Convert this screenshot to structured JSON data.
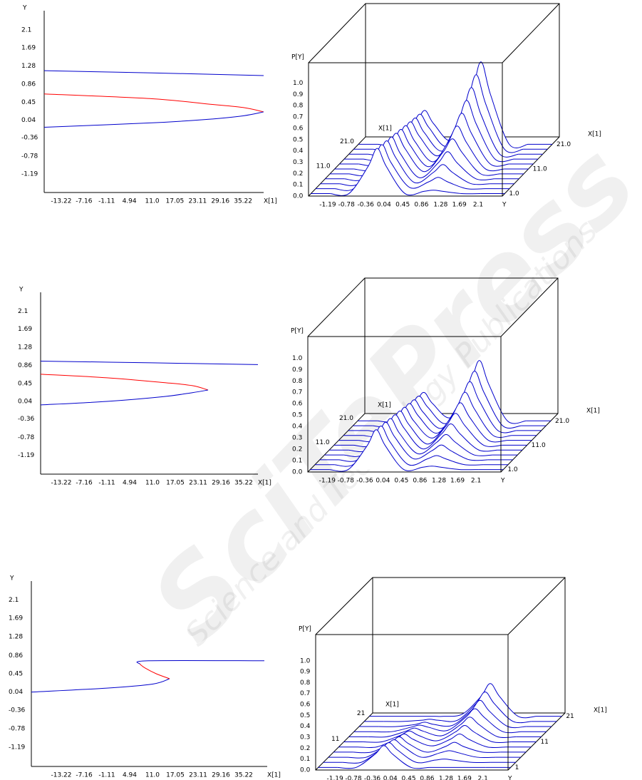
{
  "watermark": [
    "SciTePress",
    "Science and Technology Publications"
  ],
  "chart_data": [
    {
      "type": "line",
      "xlabel": "X[1]",
      "ylabel": "Y",
      "xlim": [
        -17.76,
        40.7
      ],
      "ylim": [
        -1.61,
        2.54
      ],
      "xticks": [
        -13.22,
        -7.16,
        -1.11,
        4.94,
        {
          "value": 11,
          "label": "11.0"
        },
        17.05,
        23.11,
        29.16,
        35.22
      ],
      "yticks": [
        2.1,
        1.69,
        1.28,
        0.86,
        0.45,
        0.04,
        -0.36,
        -0.78,
        -1.19
      ],
      "series": [
        {
          "color": "#0000cc",
          "x": [
            -17.76,
            11,
            40.7
          ],
          "values": [
            1.17,
            1.12,
            1.06
          ]
        },
        {
          "color": "#ff0000",
          "x": [
            -17.76,
            11,
            25.76,
            35.22,
            40.7
          ],
          "values": [
            0.64,
            0.53,
            0.41,
            0.33,
            0.23
          ]
        },
        {
          "color": "#0000cc",
          "x": [
            -17.76,
            11,
            25.76,
            35.22,
            40.7
          ],
          "values": [
            -0.12,
            -0.02,
            0.06,
            0.14,
            0.23
          ]
        }
      ]
    },
    {
      "type": "waterfall",
      "zlabel": "P[Y]",
      "xlabel": "Y",
      "depth_label": "X[1]",
      "color": "#0000cc",
      "xlim": [
        -1.61,
        2.63
      ],
      "zlim": [
        0,
        1.18
      ],
      "dlim": [
        0,
        24
      ],
      "xticks": [
        -1.19,
        -0.78,
        -0.36,
        0.04,
        0.45,
        0.86,
        1.28,
        1.69,
        2.1
      ],
      "zticks": [
        {
          "value": 0,
          "label": "0.0"
        },
        0.1,
        0.2,
        0.3,
        0.4,
        0.5,
        0.6,
        0.7,
        0.8,
        0.9,
        {
          "value": 1,
          "label": "1.0"
        }
      ],
      "depth_ticks": [
        {
          "value": 1,
          "label": "1.0"
        },
        {
          "value": 11,
          "label": "11.0"
        },
        {
          "value": 21,
          "label": "21.0"
        }
      ],
      "y_grid": [
        -1.19,
        -0.78,
        -0.36,
        -0.16,
        0.04,
        0.45,
        0.86,
        1.07,
        1.28,
        1.69,
        2.1
      ],
      "depth": [
        1,
        3,
        5,
        7,
        9,
        11,
        13,
        15,
        17,
        19,
        21
      ],
      "z": [
        [
          0,
          0,
          0.24,
          0.4,
          0.24,
          0,
          0.02,
          0.03,
          0.02,
          0,
          0
        ],
        [
          0,
          0,
          0.23,
          0.39,
          0.23,
          0.01,
          0.06,
          0.1,
          0.06,
          0,
          0
        ],
        [
          0,
          0,
          0.23,
          0.38,
          0.23,
          0.01,
          0.1,
          0.17,
          0.1,
          0,
          0
        ],
        [
          0,
          0,
          0.22,
          0.37,
          0.22,
          0.01,
          0.14,
          0.24,
          0.14,
          0,
          0
        ],
        [
          0,
          0,
          0.22,
          0.36,
          0.22,
          0.02,
          0.19,
          0.31,
          0.19,
          0,
          0
        ],
        [
          0,
          0,
          0.21,
          0.35,
          0.21,
          0.02,
          0.23,
          0.38,
          0.23,
          0,
          0
        ],
        [
          0,
          0,
          0.2,
          0.34,
          0.2,
          0.02,
          0.27,
          0.45,
          0.27,
          0,
          0
        ],
        [
          0,
          0,
          0.2,
          0.33,
          0.2,
          0.03,
          0.31,
          0.52,
          0.31,
          0,
          0
        ],
        [
          0,
          0,
          0.19,
          0.32,
          0.19,
          0.03,
          0.35,
          0.59,
          0.35,
          0,
          0
        ],
        [
          0,
          0,
          0.19,
          0.31,
          0.19,
          0.03,
          0.4,
          0.66,
          0.4,
          0,
          0
        ],
        [
          0,
          0,
          0.18,
          0.3,
          0.18,
          0.04,
          0.44,
          0.73,
          0.44,
          0,
          0
        ]
      ]
    },
    {
      "type": "line",
      "xlabel": "X[1]",
      "ylabel": "Y",
      "xlim": [
        -18.71,
        39.0
      ],
      "ylim": [
        -1.62,
        2.53
      ],
      "xticks": [
        -13.22,
        -7.16,
        -1.11,
        4.94,
        {
          "value": 11,
          "label": "11.0"
        },
        17.05,
        23.11,
        29.16,
        35.22
      ],
      "yticks": [
        2.1,
        1.69,
        1.28,
        0.86,
        0.45,
        0.04,
        -0.36,
        -0.78,
        -1.19
      ],
      "series": [
        {
          "color": "#0000cc",
          "x": [
            -18.71,
            11,
            39.0
          ],
          "values": [
            0.96,
            0.92,
            0.88
          ]
        },
        {
          "color": "#ff0000",
          "x": [
            -18.71,
            -1.11,
            14.03,
            21.6,
            25.76
          ],
          "values": [
            0.66,
            0.58,
            0.47,
            0.4,
            0.3
          ]
        },
        {
          "color": "#0000cc",
          "x": [
            -18.71,
            -1.11,
            14.03,
            21.6,
            25.76
          ],
          "values": [
            -0.04,
            0.04,
            0.15,
            0.24,
            0.3
          ]
        }
      ]
    },
    {
      "type": "waterfall",
      "zlabel": "P[Y]",
      "xlabel": "Y",
      "depth_label": "X[1]",
      "color": "#0000cc",
      "xlim": [
        -1.62,
        2.65
      ],
      "zlim": [
        0,
        1.19
      ],
      "dlim": [
        0,
        24
      ],
      "xticks": [
        -1.19,
        -0.78,
        -0.36,
        0.04,
        0.45,
        0.86,
        1.28,
        1.69,
        2.1
      ],
      "zticks": [
        {
          "value": 0,
          "label": "0.0"
        },
        0.1,
        0.2,
        0.3,
        0.4,
        0.5,
        0.6,
        0.7,
        0.8,
        0.9,
        {
          "value": 1,
          "label": "1.0"
        }
      ],
      "depth_ticks": [
        {
          "value": 1,
          "label": "1.0"
        },
        {
          "value": 11,
          "label": "11.0"
        },
        {
          "value": 21,
          "label": "21.0"
        }
      ],
      "y_grid": [
        -1.19,
        -0.78,
        -0.36,
        -0.16,
        0.04,
        0.45,
        0.86,
        1.07,
        1.28,
        1.69,
        2.1
      ],
      "depth": [
        1,
        3,
        5,
        7,
        9,
        11,
        13,
        15,
        17,
        19,
        21
      ],
      "z": [
        [
          0,
          0,
          0.21,
          0.35,
          0.21,
          0,
          0.02,
          0.03,
          0.02,
          0,
          0
        ],
        [
          0,
          0,
          0.2,
          0.34,
          0.2,
          0,
          0.05,
          0.08,
          0.05,
          0,
          0
        ],
        [
          0,
          0,
          0.2,
          0.33,
          0.2,
          0.01,
          0.08,
          0.13,
          0.08,
          0,
          0
        ],
        [
          0,
          0,
          0.19,
          0.32,
          0.19,
          0.01,
          0.11,
          0.18,
          0.11,
          0,
          0
        ],
        [
          0,
          0,
          0.19,
          0.31,
          0.19,
          0.01,
          0.14,
          0.23,
          0.14,
          0,
          0
        ],
        [
          0,
          0,
          0.18,
          0.3,
          0.18,
          0.01,
          0.17,
          0.28,
          0.17,
          0,
          0
        ],
        [
          0,
          0,
          0.17,
          0.29,
          0.17,
          0.02,
          0.2,
          0.33,
          0.2,
          0,
          0
        ],
        [
          0,
          0,
          0.17,
          0.28,
          0.17,
          0.02,
          0.23,
          0.38,
          0.23,
          0,
          0
        ],
        [
          0,
          0,
          0.16,
          0.27,
          0.16,
          0.02,
          0.26,
          0.43,
          0.26,
          0,
          0
        ],
        [
          0,
          0,
          0.16,
          0.26,
          0.16,
          0.02,
          0.29,
          0.48,
          0.29,
          0,
          0
        ],
        [
          0,
          0,
          0.15,
          0.25,
          0.15,
          0.03,
          0.32,
          0.53,
          0.32,
          0,
          0
        ]
      ]
    },
    {
      "type": "line",
      "xlabel": "X[1]",
      "ylabel": "Y",
      "xlim": [
        -21.17,
        41.46
      ],
      "ylim": [
        -1.62,
        2.52
      ],
      "xticks": [
        -13.22,
        -7.16,
        -1.11,
        4.94,
        {
          "value": 11,
          "label": "11.0"
        },
        17.05,
        23.11,
        29.16,
        35.22
      ],
      "yticks": [
        2.1,
        1.69,
        1.28,
        0.86,
        0.45,
        0.04,
        -0.36,
        -0.78,
        -1.19
      ],
      "series": [
        {
          "color": "#0000cc",
          "x": [
            -21.17,
            -1.11,
            11,
            15.54
          ],
          "values": [
            0.04,
            0.13,
            0.22,
            0.34
          ]
        },
        {
          "color": "#ff0000",
          "x": [
            15.54,
            12,
            9,
            7.59
          ],
          "values": [
            0.34,
            0.45,
            0.58,
            0.67
          ]
        },
        {
          "color": "#0000cc",
          "x": [
            7.59,
            10,
            40.7
          ],
          "values": [
            0.67,
            0.74,
            0.74
          ]
        }
      ]
    },
    {
      "type": "waterfall",
      "zlabel": "P[Y]",
      "xlabel": "Y",
      "depth_label": "X[1]",
      "color": "#0000cc",
      "xlim": [
        -1.62,
        2.66
      ],
      "zlim": [
        0,
        1.24
      ],
      "dlim": [
        0,
        22.3
      ],
      "xticks": [
        -1.19,
        -0.78,
        -0.36,
        0.04,
        0.45,
        0.86,
        1.28,
        1.69,
        2.1
      ],
      "zticks": [
        {
          "value": 0,
          "label": "0.0"
        },
        0.1,
        0.2,
        0.3,
        0.4,
        0.5,
        0.6,
        0.7,
        0.8,
        0.9,
        {
          "value": 1,
          "label": "1.0"
        }
      ],
      "depth_ticks": [
        1,
        11,
        21
      ],
      "y_grid": [
        -1.19,
        -0.78,
        -0.36,
        -0.16,
        0.04,
        0.45,
        0.86,
        1.07,
        1.28,
        1.69,
        2.1
      ],
      "depth": [
        1,
        3,
        5,
        7,
        9,
        11,
        13,
        15,
        17,
        19,
        21
      ],
      "z": [
        [
          0,
          0,
          0.12,
          0.2,
          0.12,
          0,
          0,
          0,
          0,
          0,
          0
        ],
        [
          0,
          0,
          0.11,
          0.18,
          0.11,
          0,
          0.02,
          0.03,
          0.02,
          0,
          0
        ],
        [
          0,
          0,
          0.1,
          0.16,
          0.1,
          0,
          0.04,
          0.06,
          0.04,
          0,
          0
        ],
        [
          0,
          0,
          0.08,
          0.14,
          0.08,
          0,
          0.05,
          0.09,
          0.05,
          0,
          0
        ],
        [
          0,
          0,
          0.07,
          0.12,
          0.07,
          0.01,
          0.07,
          0.12,
          0.07,
          0,
          0
        ],
        [
          0,
          0,
          0.06,
          0.1,
          0.06,
          0.01,
          0.09,
          0.15,
          0.09,
          0,
          0
        ],
        [
          0,
          0,
          0.05,
          0.08,
          0.05,
          0.01,
          0.11,
          0.18,
          0.11,
          0,
          0
        ],
        [
          0,
          0,
          0.04,
          0.06,
          0.04,
          0.01,
          0.13,
          0.21,
          0.13,
          0,
          0
        ],
        [
          0,
          0,
          0.02,
          0.04,
          0.02,
          0.01,
          0.14,
          0.24,
          0.14,
          0,
          0
        ],
        [
          0,
          0,
          0.01,
          0.02,
          0.01,
          0.01,
          0.16,
          0.27,
          0.16,
          0,
          0
        ],
        [
          0,
          0,
          0,
          0,
          0,
          0.02,
          0.18,
          0.3,
          0.18,
          0,
          0
        ]
      ]
    }
  ]
}
